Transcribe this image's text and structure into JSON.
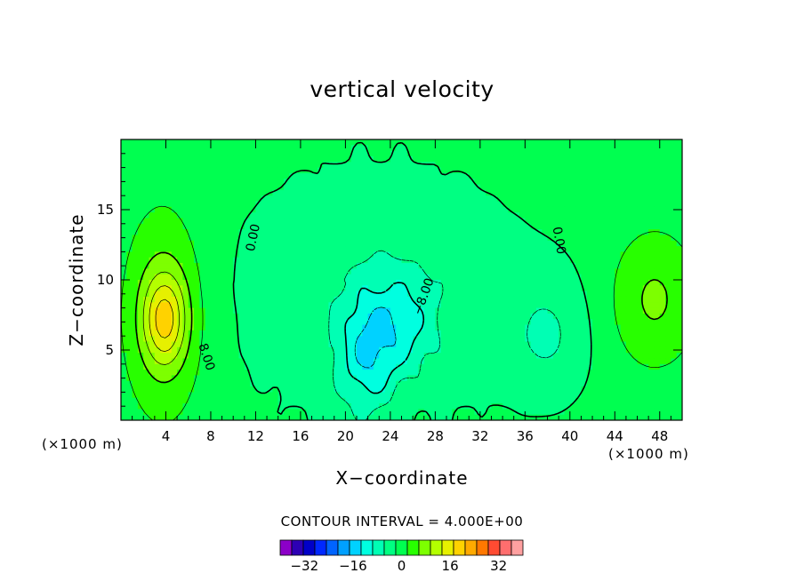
{
  "chart_data": {
    "type": "heatmap",
    "title": "vertical velocity",
    "xlabel": "X−coordinate",
    "ylabel": "Z−coordinate",
    "x_unit_label": "(×1000 m)",
    "xlim": [
      0,
      50
    ],
    "ylim": [
      0,
      20
    ],
    "x_ticks": [
      4,
      8,
      12,
      16,
      20,
      24,
      28,
      32,
      36,
      40,
      44,
      48
    ],
    "y_ticks": [
      5,
      10,
      15
    ],
    "contour_interval_text": "CONTOUR INTERVAL = 4.000E+00",
    "contour_interval": 4,
    "contour_labels": [
      "0.00",
      "0.00",
      "8.00",
      "−8.00"
    ],
    "colorbar": {
      "levels": [
        -40,
        -36,
        -32,
        -28,
        -24,
        -20,
        -16,
        -12,
        -8,
        -4,
        0,
        4,
        8,
        12,
        16,
        20,
        24,
        28,
        32,
        36,
        40
      ],
      "tick_labels": [
        "−32",
        "−16",
        "0",
        "16",
        "32"
      ],
      "tick_values": [
        -32,
        -16,
        0,
        16,
        32
      ],
      "colors": [
        "#8c00c8",
        "#2d00b4",
        "#0000c8",
        "#0028ff",
        "#0064ff",
        "#00a0ff",
        "#00d2ff",
        "#00ffe0",
        "#00ffb4",
        "#00ff82",
        "#00ff50",
        "#28ff00",
        "#7dff00",
        "#b4ff00",
        "#e6f000",
        "#ffd200",
        "#ffaa00",
        "#ff7800",
        "#ff4b32",
        "#ff6e6e",
        "#ffa0a0"
      ]
    },
    "features": [
      {
        "name": "updraft",
        "x": 4.0,
        "z": 7.5,
        "peak": 22
      },
      {
        "name": "updraft",
        "x": 47.5,
        "z": 8.8,
        "peak": 9
      },
      {
        "name": "downdraft",
        "x": 22.0,
        "z": 4.5,
        "peak": -14
      },
      {
        "name": "downdraft",
        "x": 25.0,
        "z": 7.0,
        "peak": -10
      },
      {
        "name": "downdraft",
        "x": 38.0,
        "z": 6.0,
        "peak": -6
      }
    ]
  }
}
